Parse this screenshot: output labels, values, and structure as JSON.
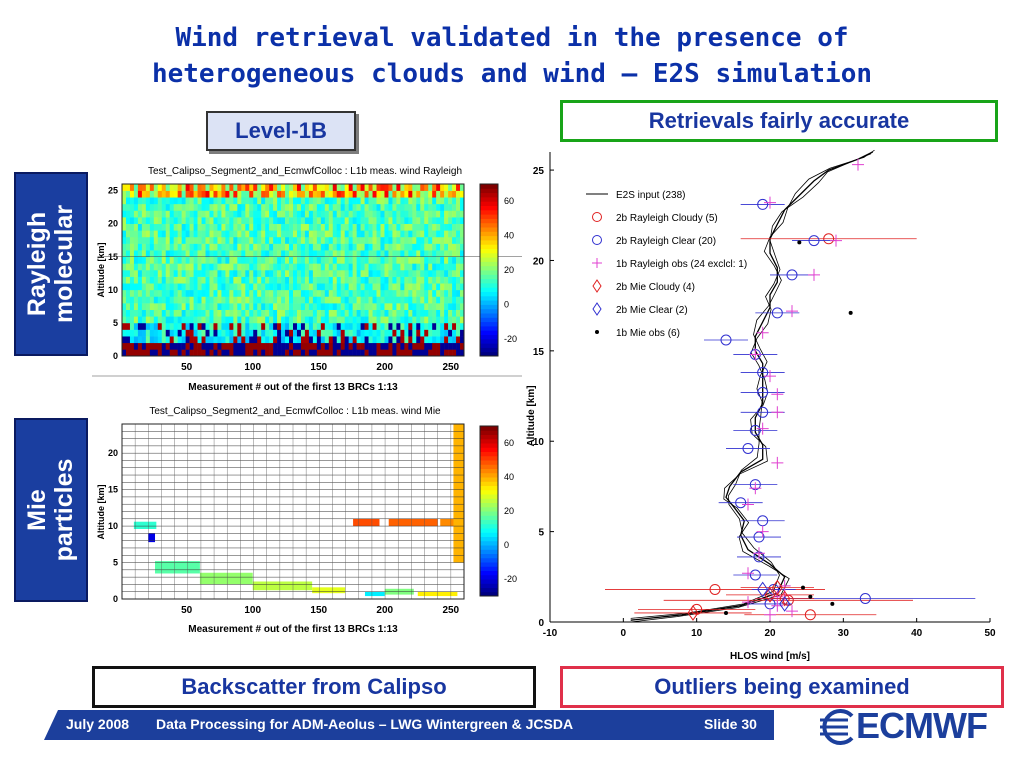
{
  "slide": {
    "title_line1": "Wind retrieval validated in the presence of",
    "title_line2": "heterogeneous clouds and wind – E2S simulation",
    "level_label": "Level-1B",
    "retrievals_label": "Retrievals fairly accurate",
    "backscatter_label": "Backscatter from Calipso",
    "outliers_label": "Outliers being examined",
    "rayleigh_line1": "Rayleigh",
    "rayleigh_line2": "molecular",
    "mie_line1": "Mie",
    "mie_line2": "particles",
    "colors": {
      "title": "#0b30a8",
      "label_bg": "#1a3ea0",
      "retrievals_border": "#18a418",
      "outliers_border": "#e0304a"
    }
  },
  "footer": {
    "date": "July 2008",
    "event": "Data Processing for ADM-Aeolus  –  LWG Wintergreen & JCSDA",
    "slide_number": "Slide 30",
    "logo": "ECMWF"
  },
  "chart_data": [
    {
      "type": "heatmap",
      "title": "Test_Calipso_Segment2_and_EcmwfColloc : L1b meas. wind Rayleigh",
      "xlabel": "Measurement # out of the first 13 BRCs 1:13",
      "ylabel": "Altitude [km]",
      "xticks": [
        "50",
        "100",
        "150",
        "200",
        "250"
      ],
      "yticks": [
        "0",
        "5",
        "10",
        "15",
        "20",
        "25"
      ],
      "xlim": [
        1,
        260
      ],
      "ylim": [
        0,
        26
      ],
      "colorbar": {
        "ticks": [
          "60",
          "40",
          "20",
          "0",
          "-20"
        ],
        "range": [
          -30,
          70
        ]
      }
    },
    {
      "type": "heatmap",
      "title": "Test_Calipso_Segment2_and_EcmwfColloc : L1b meas. wind Mie",
      "xlabel": "Measurement # out of the first 13 BRCs 1:13",
      "ylabel": "Altitude [km]",
      "xticks": [
        "50",
        "100",
        "150",
        "200",
        "250"
      ],
      "yticks": [
        "0",
        "5",
        "10",
        "15",
        "20"
      ],
      "xlim": [
        1,
        260
      ],
      "ylim": [
        0,
        24
      ],
      "colorbar": {
        "ticks": [
          "60",
          "40",
          "20",
          "0",
          "-20"
        ],
        "range": [
          -30,
          70
        ]
      }
    },
    {
      "type": "line",
      "xlabel": "HLOS wind [m/s]",
      "ylabel": "Altitude [km]",
      "xlim": [
        -10,
        50
      ],
      "ylim": [
        0,
        26
      ],
      "xticks": [
        "-10",
        "0",
        "10",
        "20",
        "30",
        "40",
        "50"
      ],
      "yticks": [
        "0",
        "5",
        "10",
        "15",
        "20",
        "25"
      ],
      "legend_position": "top-left",
      "series": [
        {
          "name": "E2S input (238)",
          "kind": "line",
          "color": "#000000",
          "points": [
            [
              1,
              0.1
            ],
            [
              8,
              0.4
            ],
            [
              16,
              0.9
            ],
            [
              21,
              1.6
            ],
            [
              22,
              2.5
            ],
            [
              20,
              3.2
            ],
            [
              17,
              4.0
            ],
            [
              16,
              4.8
            ],
            [
              16.5,
              5.6
            ],
            [
              15,
              6.4
            ],
            [
              14,
              6.9
            ],
            [
              14.5,
              7.5
            ],
            [
              16,
              8.3
            ],
            [
              19,
              9.0
            ],
            [
              19,
              9.8
            ],
            [
              18,
              10.5
            ],
            [
              18,
              11.3
            ],
            [
              19,
              12.1
            ],
            [
              19,
              12.8
            ],
            [
              19,
              13.5
            ],
            [
              19,
              14.3
            ],
            [
              18,
              15.0
            ],
            [
              18,
              15.8
            ],
            [
              19,
              16.6
            ],
            [
              20,
              17.4
            ],
            [
              20,
              18.1
            ],
            [
              21,
              18.8
            ],
            [
              21,
              19.6
            ],
            [
              20,
              20.4
            ],
            [
              20,
              21.2
            ],
            [
              21,
              22.0
            ],
            [
              22,
              22.8
            ],
            [
              24,
              23.6
            ],
            [
              26,
              24.4
            ],
            [
              28,
              25.0
            ],
            [
              32,
              25.6
            ],
            [
              34,
              26.0
            ]
          ]
        },
        {
          "name": "2b Rayleigh Cloudy (5)",
          "kind": "marker",
          "marker": "circle",
          "color": "#e02020",
          "points": [
            [
              12.5,
              1.8
            ],
            [
              22.5,
              1.2
            ],
            [
              25.5,
              0.4
            ],
            [
              28,
              21.2
            ],
            [
              10,
              0.7
            ]
          ],
          "xerr": [
            15,
            17,
            9,
            12,
            8
          ]
        },
        {
          "name": "2b Rayleigh Clear  (20)",
          "kind": "marker",
          "marker": "circle",
          "color": "#3030d0",
          "points": [
            [
              19,
              23.1
            ],
            [
              26,
              21.1
            ],
            [
              23,
              19.2
            ],
            [
              21,
              17.1
            ],
            [
              14,
              15.6
            ],
            [
              18,
              14.8
            ],
            [
              19,
              13.8
            ],
            [
              19,
              12.7
            ],
            [
              19,
              11.6
            ],
            [
              18,
              10.6
            ],
            [
              17,
              9.6
            ],
            [
              18,
              7.6
            ],
            [
              16,
              6.6
            ],
            [
              19,
              5.6
            ],
            [
              18.5,
              4.7
            ],
            [
              18.5,
              3.6
            ],
            [
              18,
              2.6
            ],
            [
              20.5,
              1.8
            ],
            [
              33,
              1.3
            ],
            [
              20,
              1.0
            ]
          ],
          "xerr": [
            3,
            3,
            3,
            3,
            3,
            3,
            3,
            3,
            3,
            3,
            3,
            3,
            3,
            3,
            3,
            3,
            3,
            3,
            15,
            3
          ]
        },
        {
          "name": "1b Rayleigh obs (24 exclcl: 1)",
          "kind": "marker",
          "marker": "plus",
          "color": "#e040d0",
          "points": [
            [
              32,
              25.3
            ],
            [
              20,
              23.2
            ],
            [
              29,
              21.1
            ],
            [
              26,
              19.2
            ],
            [
              23,
              17.2
            ],
            [
              19,
              16.0
            ],
            [
              18,
              14.8
            ],
            [
              20,
              13.6
            ],
            [
              21,
              12.6
            ],
            [
              21,
              11.6
            ],
            [
              19,
              10.7
            ],
            [
              21,
              8.8
            ],
            [
              18,
              7.4
            ],
            [
              17,
              6.5
            ],
            [
              19,
              5.0
            ],
            [
              18.5,
              3.8
            ],
            [
              17,
              2.7
            ],
            [
              22,
              2.0
            ],
            [
              21,
              1.4
            ],
            [
              21,
              0.9
            ],
            [
              20,
              0.4
            ],
            [
              22,
              1.5
            ],
            [
              17,
              1.1
            ],
            [
              23,
              0.6
            ]
          ]
        },
        {
          "name": "2b Mie Cloudy (4)",
          "kind": "marker",
          "marker": "diamond",
          "color": "#e02020",
          "points": [
            [
              9.5,
              0.5
            ],
            [
              20,
              1.5
            ],
            [
              21,
              1.9
            ],
            [
              22,
              1.3
            ]
          ],
          "xerr": [
            8,
            6,
            5,
            4
          ]
        },
        {
          "name": "2b Mie Clear  (2)",
          "kind": "marker",
          "marker": "diamond",
          "color": "#3030d0",
          "points": [
            [
              19,
              1.8
            ],
            [
              22,
              1.0
            ]
          ]
        },
        {
          "name": "1b Mie obs (6)",
          "kind": "marker",
          "marker": "dot",
          "color": "#000000",
          "points": [
            [
              24.5,
              1.9
            ],
            [
              25.5,
              1.4
            ],
            [
              28.5,
              1.0
            ],
            [
              24,
              21.0
            ],
            [
              31,
              17.1
            ],
            [
              14,
              0.5
            ]
          ]
        }
      ]
    }
  ]
}
